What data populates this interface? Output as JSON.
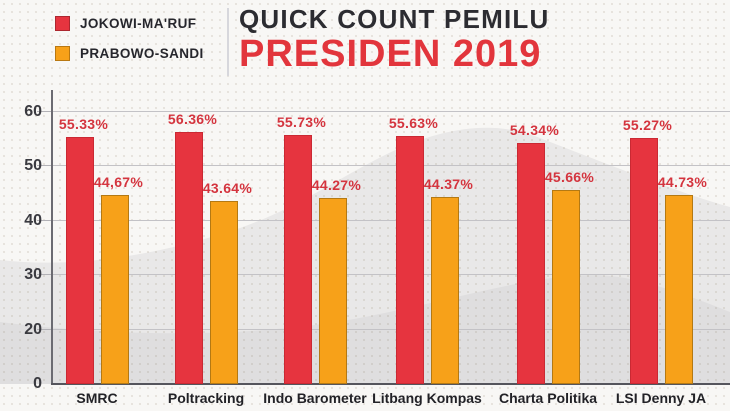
{
  "header": {
    "title_line1": "QUICK COUNT PEMILU",
    "title_line2": "PRESIDEN 2019"
  },
  "chart_data": {
    "type": "bar",
    "title": "QUICK COUNT PEMILU PRESIDEN 2019",
    "categories": [
      "SMRC",
      "Poltracking",
      "Indo Barometer",
      "Litbang Kompas",
      "Charta Politika",
      "LSI Denny JA"
    ],
    "series": [
      {
        "name": "JOKOWI-MA'RUF",
        "color": "#e6343f",
        "values": [
          55.33,
          56.36,
          55.73,
          55.63,
          54.34,
          55.27
        ],
        "labels": [
          "55.33%",
          "56.36%",
          "55.73%",
          "55.63%",
          "54.34%",
          "55.27%"
        ]
      },
      {
        "name": "PRABOWO-SANDI",
        "color": "#f7a119",
        "values": [
          44.67,
          43.64,
          44.27,
          44.37,
          45.66,
          44.73
        ],
        "labels": [
          "44,67%",
          "43.64%",
          "44.27%",
          "44.37%",
          "45.66%",
          "44.73%"
        ]
      }
    ],
    "y_ticks": [
      60,
      50,
      40,
      30,
      20,
      0
    ],
    "ylim": [
      0,
      60
    ],
    "grid": true,
    "legend_position": "top-left",
    "value_label_color": "#d4343e",
    "title_color_line1": "#2c2c31",
    "title_color_line2": "#e2353c"
  }
}
